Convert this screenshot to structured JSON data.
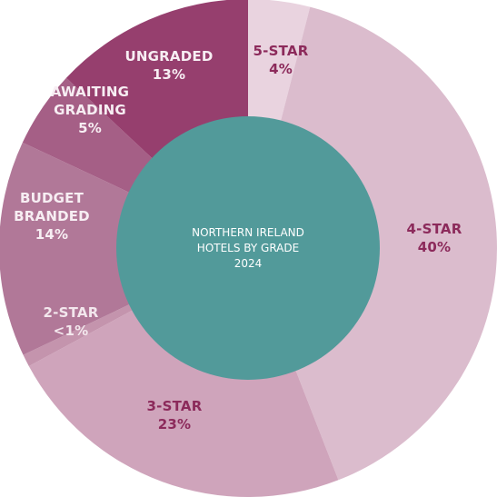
{
  "chart_data": {
    "type": "pie",
    "variant": "donut",
    "title": "NORTHERN IRELAND\nHOTELS BY GRADE\n2024",
    "slices": [
      {
        "label": "5-STAR",
        "value_label": "4%",
        "value": 4,
        "color": "#e9d3df",
        "label_color": "#8c2a5b"
      },
      {
        "label": "4-STAR",
        "value_label": "40%",
        "value": 40,
        "color": "#dbbccd",
        "label_color": "#8c2a5b"
      },
      {
        "label": "3-STAR",
        "value_label": "23%",
        "value": 23,
        "color": "#cfa4bb",
        "label_color": "#8c2a5b"
      },
      {
        "label": "2-STAR",
        "value_label": "<1%",
        "value": 0.8,
        "color": "#c494ad",
        "label_color": "#f3e7ed"
      },
      {
        "label": "BUDGET\nBRANDED",
        "value_label": "14%",
        "value": 14,
        "color": "#b17898",
        "label_color": "#f7eef3"
      },
      {
        "label": "AWAITING\nGRADING",
        "value_label": "5%",
        "value": 5,
        "color": "#a55f86",
        "label_color": "#f7eef3"
      },
      {
        "label": "UNGRADED",
        "value_label": "13%",
        "value": 13,
        "color": "#963f6e",
        "label_color": "#f7eef3"
      }
    ],
    "center_color": "#529a9a"
  }
}
